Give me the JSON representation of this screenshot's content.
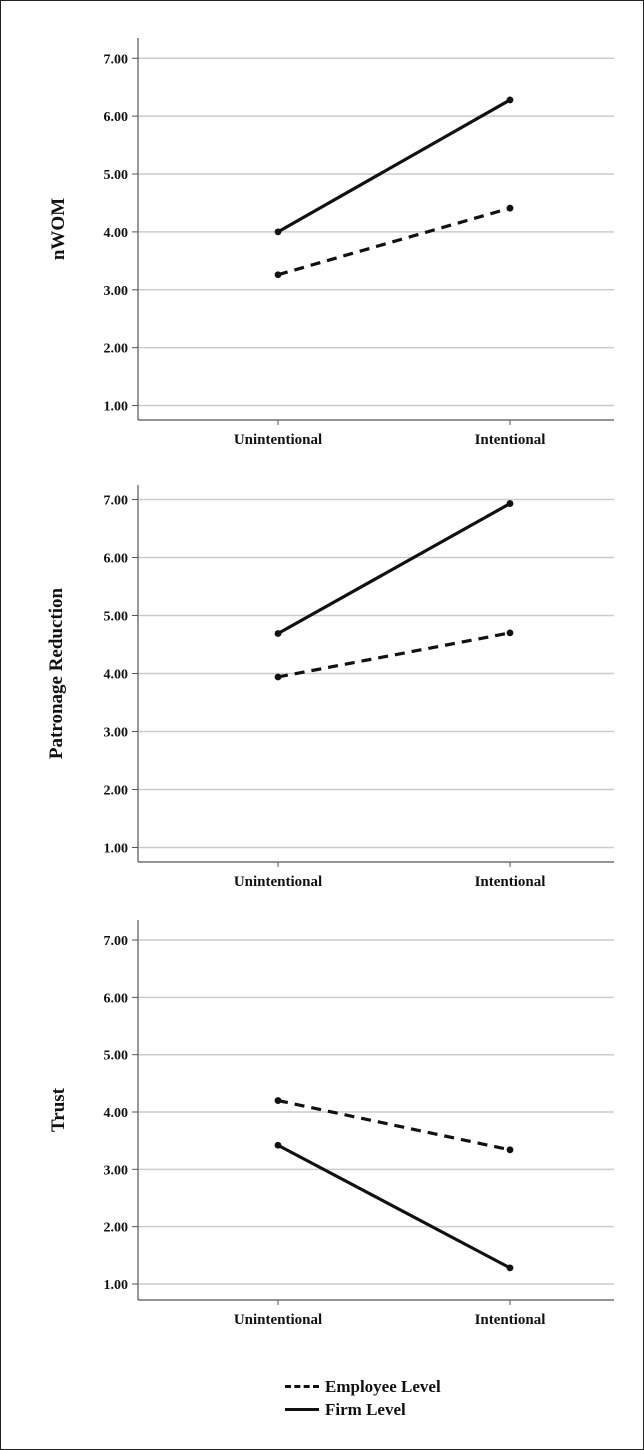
{
  "chart_data": [
    {
      "type": "line",
      "ylabel": "nWOM",
      "xlabel": "",
      "categories": [
        "Unintentional",
        "Intentional"
      ],
      "yticks": [
        "1.00",
        "2.00",
        "3.00",
        "4.00",
        "5.00",
        "6.00",
        "7.00"
      ],
      "ylim": [
        0.75,
        7.35
      ],
      "grid": true,
      "series": [
        {
          "name": "Employee Level",
          "style": "dashed",
          "values": [
            3.26,
            4.41
          ]
        },
        {
          "name": "Firm Level",
          "style": "solid",
          "values": [
            4.0,
            6.28
          ]
        }
      ]
    },
    {
      "type": "line",
      "ylabel": "Patronage Reduction",
      "xlabel": "",
      "categories": [
        "Unintentional",
        "Intentional"
      ],
      "yticks": [
        "1.00",
        "2.00",
        "3.00",
        "4.00",
        "5.00",
        "6.00",
        "7.00"
      ],
      "ylim": [
        0.75,
        7.25
      ],
      "grid": true,
      "series": [
        {
          "name": "Employee Level",
          "style": "dashed",
          "values": [
            3.94,
            4.7
          ]
        },
        {
          "name": "Firm Level",
          "style": "solid",
          "values": [
            4.69,
            6.93
          ]
        }
      ]
    },
    {
      "type": "line",
      "ylabel": "Trust",
      "xlabel": "",
      "categories": [
        "Unintentional",
        "Intentional"
      ],
      "yticks": [
        "1.00",
        "2.00",
        "3.00",
        "4.00",
        "5.00",
        "6.00",
        "7.00"
      ],
      "ylim": [
        0.72,
        7.35
      ],
      "grid": true,
      "series": [
        {
          "name": "Employee Level",
          "style": "dashed",
          "values": [
            4.2,
            3.34
          ]
        },
        {
          "name": "Firm Level",
          "style": "solid",
          "values": [
            3.42,
            1.28
          ]
        }
      ]
    }
  ],
  "legend": {
    "placement": "bottom",
    "items": [
      {
        "label": "Employee Level",
        "style": "dashed"
      },
      {
        "label": "Firm Level",
        "style": "solid"
      }
    ]
  },
  "colors": {
    "line": "#111111",
    "grid": "#cccccc",
    "axis": "#555555"
  }
}
